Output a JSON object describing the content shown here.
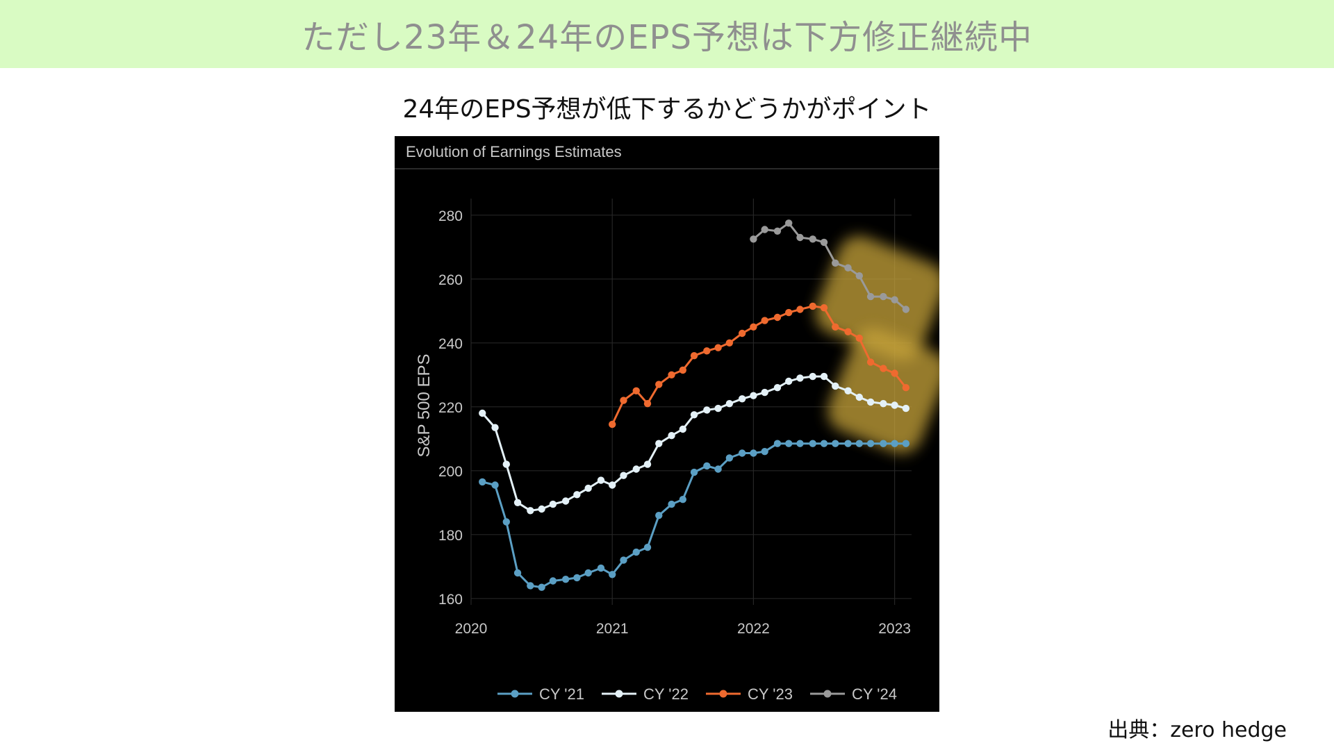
{
  "banner": {
    "title": "ただし23年＆24年のEPS予想は下方修正継続中"
  },
  "subtitle": "24年のEPS予想が低下するかどうかがポイント",
  "source": "出典：zero hedge",
  "chart_data": {
    "type": "line",
    "title": "Evolution of Earnings Estimates",
    "xlabel": "",
    "ylabel": "S&P 500 EPS",
    "xlim": [
      2020,
      2023.12
    ],
    "ylim": [
      158,
      283
    ],
    "xticks": [
      "2020",
      "2021",
      "2022",
      "2023"
    ],
    "yticks": [
      160,
      180,
      200,
      220,
      240,
      260,
      280
    ],
    "grid": true,
    "legend_position": "bottom",
    "highlight_color": "#c8a43a",
    "series": [
      {
        "name": "CY '21",
        "color": "#5b9fc4",
        "x": [
          2020.08,
          2020.17,
          2020.25,
          2020.33,
          2020.42,
          2020.5,
          2020.58,
          2020.67,
          2020.75,
          2020.83,
          2020.92,
          2021.0,
          2021.08,
          2021.17,
          2021.25,
          2021.33,
          2021.42,
          2021.5,
          2021.58,
          2021.67,
          2021.75,
          2021.83,
          2021.92,
          2022.0,
          2022.08,
          2022.17,
          2022.25,
          2022.33,
          2022.42,
          2022.5,
          2022.58,
          2022.67,
          2022.75,
          2022.83,
          2022.92,
          2023.0,
          2023.08
        ],
        "values": [
          196.5,
          195.5,
          184,
          168,
          164,
          163.5,
          165.5,
          166,
          166.5,
          168,
          169.5,
          167.5,
          172,
          174.5,
          176,
          186,
          189.5,
          191,
          199.5,
          201.5,
          200.5,
          204,
          205.5,
          205.5,
          206,
          208.5,
          208.5,
          208.5,
          208.5,
          208.5,
          208.5,
          208.5,
          208.5,
          208.5,
          208.5,
          208.5,
          208.5
        ]
      },
      {
        "name": "CY '22",
        "color": "#e4f1f7",
        "x": [
          2020.08,
          2020.17,
          2020.25,
          2020.33,
          2020.42,
          2020.5,
          2020.58,
          2020.67,
          2020.75,
          2020.83,
          2020.92,
          2021.0,
          2021.08,
          2021.17,
          2021.25,
          2021.33,
          2021.42,
          2021.5,
          2021.58,
          2021.67,
          2021.75,
          2021.83,
          2021.92,
          2022.0,
          2022.08,
          2022.17,
          2022.25,
          2022.33,
          2022.42,
          2022.5,
          2022.58,
          2022.67,
          2022.75,
          2022.83,
          2022.92,
          2023.0,
          2023.08
        ],
        "values": [
          218,
          213.5,
          202,
          190,
          187.5,
          188,
          189.5,
          190.5,
          192.5,
          194.5,
          197,
          195.5,
          198.5,
          200.5,
          202,
          208.5,
          211,
          213,
          217.5,
          219,
          219.5,
          221,
          222.5,
          223.5,
          224.5,
          226,
          228,
          229,
          229.5,
          229.5,
          226.5,
          225,
          223,
          221.5,
          221,
          220.5,
          219.5
        ]
      },
      {
        "name": "CY '23",
        "color": "#ef6a2f",
        "x": [
          2021.0,
          2021.08,
          2021.17,
          2021.25,
          2021.33,
          2021.42,
          2021.5,
          2021.58,
          2021.67,
          2021.75,
          2021.83,
          2021.92,
          2022.0,
          2022.08,
          2022.17,
          2022.25,
          2022.33,
          2022.42,
          2022.5,
          2022.58,
          2022.67,
          2022.75,
          2022.83,
          2022.92,
          2023.0,
          2023.08
        ],
        "values": [
          214.5,
          222,
          225,
          221,
          227,
          230,
          231.5,
          236,
          237.5,
          238.5,
          240,
          243,
          245,
          247,
          248,
          249.5,
          250.5,
          251.5,
          251,
          245,
          243.5,
          241.5,
          234,
          232,
          230.5,
          226
        ]
      },
      {
        "name": "CY '24",
        "color": "#9a9a9a",
        "x": [
          2022.0,
          2022.08,
          2022.17,
          2022.25,
          2022.33,
          2022.42,
          2022.5,
          2022.58,
          2022.67,
          2022.75,
          2022.83,
          2022.92,
          2023.0,
          2023.08
        ],
        "values": [
          272.5,
          275.5,
          275,
          277.5,
          273,
          272.5,
          271.5,
          265,
          263.5,
          261,
          254.5,
          254.5,
          253.5,
          250.5
        ]
      }
    ]
  }
}
